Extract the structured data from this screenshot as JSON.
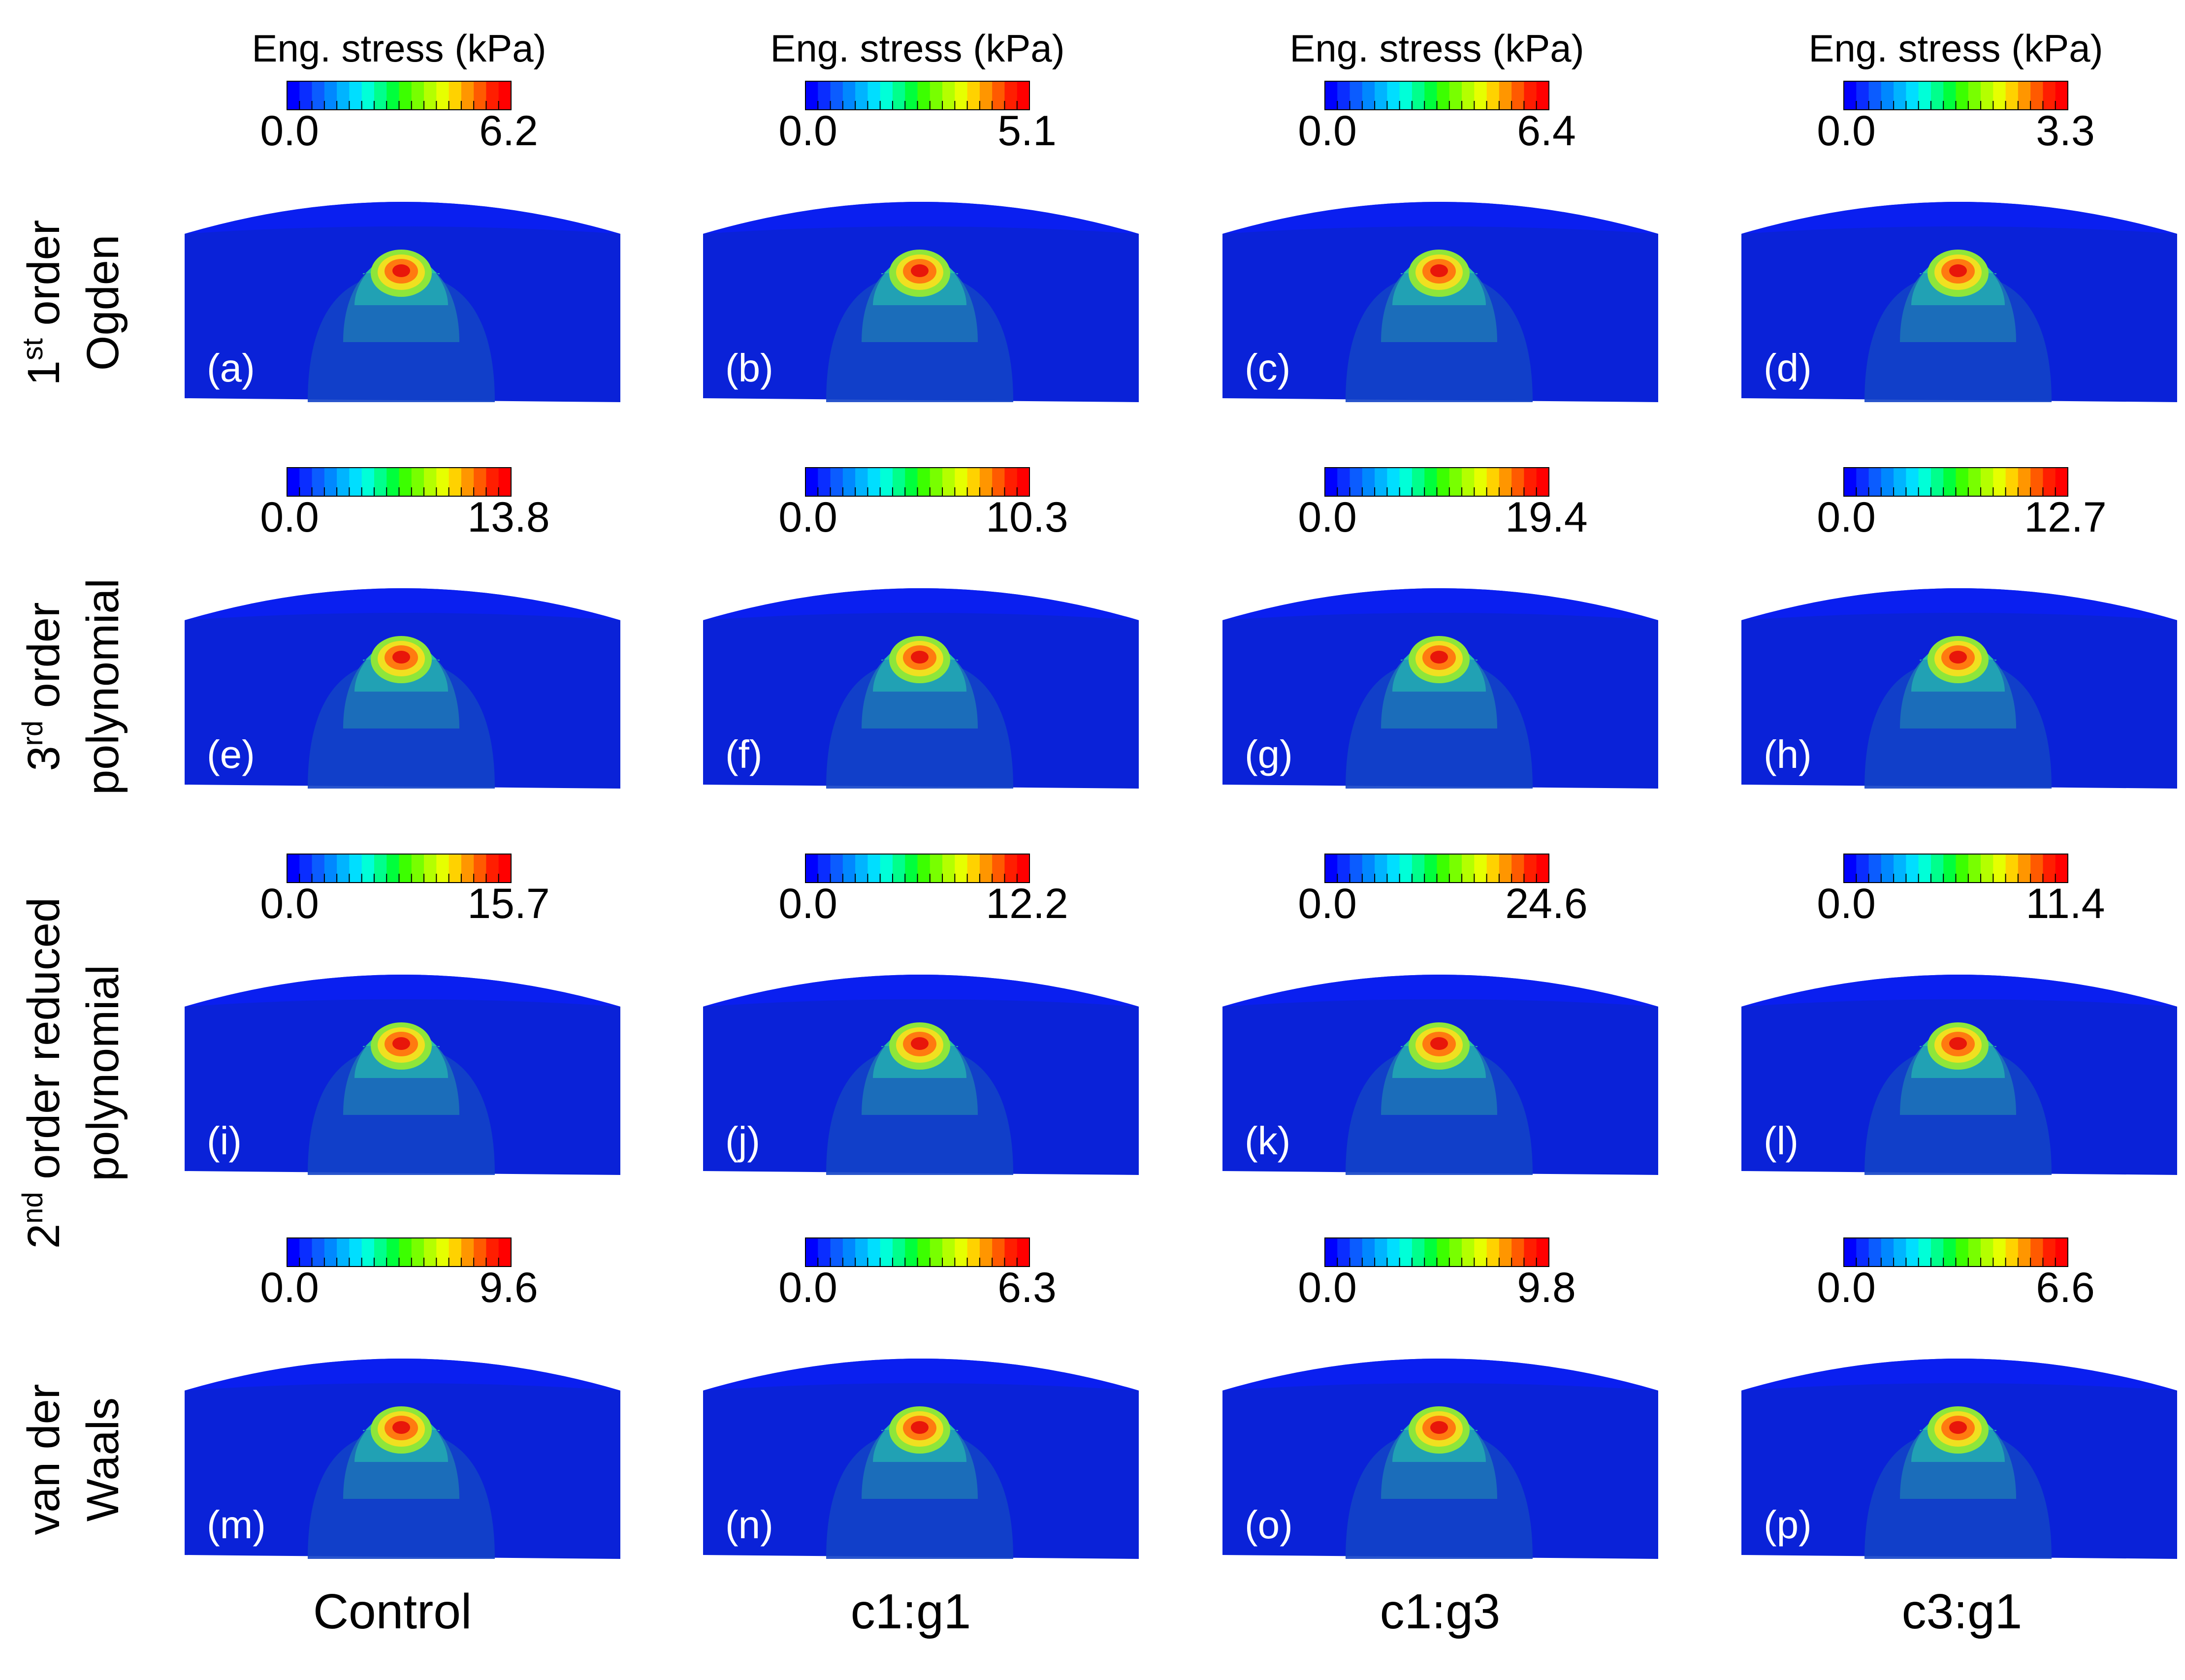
{
  "colorbar": {
    "title": "Eng. stress (kPa)",
    "colors": [
      "#0000ff",
      "#0a2dff",
      "#0b5cff",
      "#0088ff",
      "#00b4ff",
      "#00deff",
      "#00ffd8",
      "#00ff8c",
      "#00ff3c",
      "#3cff00",
      "#78ff00",
      "#b4ff00",
      "#e6ff00",
      "#ffd200",
      "#ff9600",
      "#ff5a00",
      "#ff1e00",
      "#ff0000"
    ]
  },
  "model_colors": {
    "background": "#0a22d8",
    "top_surface": "#0a1ff0",
    "contour_levels": [
      "#1242c8",
      "#1d72b8",
      "#22a6b4",
      "#2cc8a0",
      "#8ee63a",
      "#f0e020",
      "#ff7a10",
      "#e8160a"
    ]
  },
  "columns": [
    {
      "label": "Control"
    },
    {
      "label": "c1:g1"
    },
    {
      "label": "c1:g3"
    },
    {
      "label": "c3:g1"
    }
  ],
  "rows": [
    {
      "label_line1_main": "1",
      "label_line1_sup": "st",
      "label_line1_rest": " order",
      "label_line2": "Ogden"
    },
    {
      "label_line1_main": "3",
      "label_line1_sup": "rd",
      "label_line1_rest": " order",
      "label_line2": "polynomial"
    },
    {
      "label_line1_main": "2",
      "label_line1_sup": "nd",
      "label_line1_rest": " order reduced",
      "label_line2": "polynomial"
    },
    {
      "label_line1_main": "van der",
      "label_line1_sup": "",
      "label_line1_rest": "",
      "label_line2": "Waals"
    }
  ],
  "panels": [
    {
      "letter": "(a)",
      "min": "0.0",
      "max": "6.2",
      "show_title": true
    },
    {
      "letter": "(b)",
      "min": "0.0",
      "max": "5.1",
      "show_title": true
    },
    {
      "letter": "(c)",
      "min": "0.0",
      "max": "6.4",
      "show_title": true
    },
    {
      "letter": "(d)",
      "min": "0.0",
      "max": "3.3",
      "show_title": true
    },
    {
      "letter": "(e)",
      "min": "0.0",
      "max": "13.8",
      "show_title": false
    },
    {
      "letter": "(f)",
      "min": "0.0",
      "max": "10.3",
      "show_title": false
    },
    {
      "letter": "(g)",
      "min": "0.0",
      "max": "19.4",
      "show_title": false
    },
    {
      "letter": "(h)",
      "min": "0.0",
      "max": "12.7",
      "show_title": false
    },
    {
      "letter": "(i)",
      "min": "0.0",
      "max": "15.7",
      "show_title": false
    },
    {
      "letter": "(j)",
      "min": "0.0",
      "max": "12.2",
      "show_title": false
    },
    {
      "letter": "(k)",
      "min": "0.0",
      "max": "24.6",
      "show_title": false
    },
    {
      "letter": "(l)",
      "min": "0.0",
      "max": "11.4",
      "show_title": false
    },
    {
      "letter": "(m)",
      "min": "0.0",
      "max": "9.6",
      "show_title": false
    },
    {
      "letter": "(n)",
      "min": "0.0",
      "max": "6.3",
      "show_title": false
    },
    {
      "letter": "(o)",
      "min": "0.0",
      "max": "9.8",
      "show_title": false
    },
    {
      "letter": "(p)",
      "min": "0.0",
      "max": "6.6",
      "show_title": false
    }
  ]
}
